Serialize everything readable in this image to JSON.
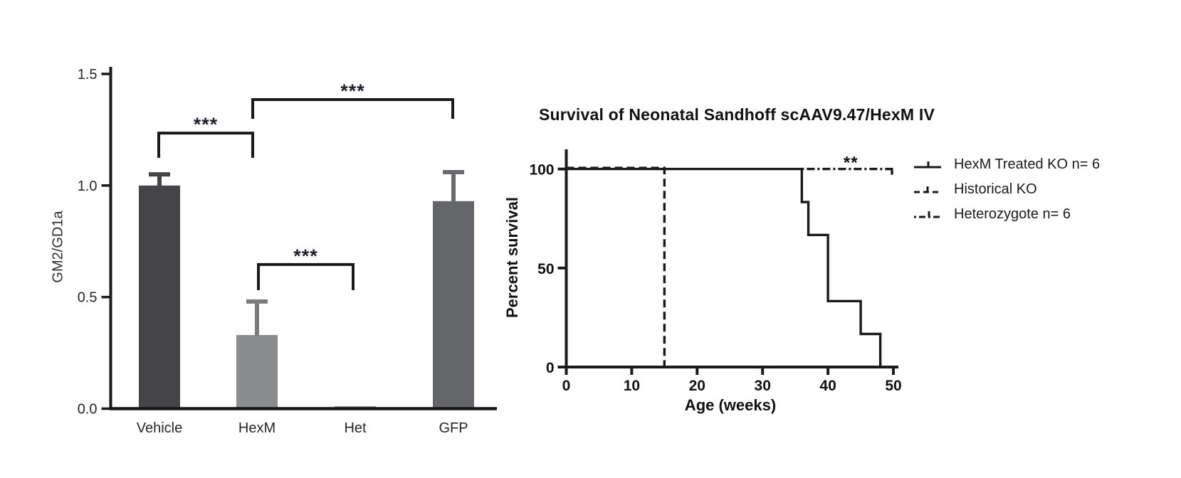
{
  "chart_data": [
    {
      "type": "bar",
      "ylabel": "GM2/GD1a",
      "categories": [
        "Vehicle",
        "HexM",
        "Het",
        "GFP"
      ],
      "values": [
        1.0,
        0.33,
        0.011,
        0.93
      ],
      "errors_up": [
        0.05,
        0.15,
        0,
        0.13
      ],
      "bar_colors": [
        "#454547",
        "#8b8c8e",
        "#96979a",
        "#656669"
      ],
      "error_colors": [
        "#454547",
        "#7a7b7e",
        "#96979a",
        "#6a6b6e"
      ],
      "y_tick_labels": [
        "0.0",
        "0.5",
        "1.0",
        "1.5"
      ],
      "y_tick_values": [
        0,
        0.5,
        1.0,
        1.5
      ],
      "ylim": [
        0,
        1.5
      ],
      "grid": false,
      "significance_brackets": [
        {
          "from": 0,
          "to": 1,
          "label": "***",
          "y": 1.235,
          "tip": 1.124
        },
        {
          "from": 1,
          "to": 3,
          "label": "***",
          "y": 1.385,
          "tip": 1.299
        },
        {
          "from": 1,
          "to": 2,
          "label": "***",
          "y": 0.646,
          "tip": 0.531
        }
      ]
    },
    {
      "type": "line",
      "title": "Survival of Neonatal Sandhoff scAAV9.47/HexM IV",
      "xlabel": "Age (weeks)",
      "ylabel": "Percent survival",
      "x_tick_labels": [
        "0",
        "10",
        "20",
        "30",
        "40",
        "50"
      ],
      "x_tick_values": [
        0,
        10,
        20,
        30,
        40,
        50
      ],
      "y_tick_labels": [
        "0",
        "50",
        "100"
      ],
      "y_tick_values": [
        0,
        50,
        100
      ],
      "xlim": [
        0,
        50
      ],
      "ylim": [
        0,
        100
      ],
      "grid": false,
      "legend_position": "right",
      "annotation": {
        "label": "**",
        "x": 43.5,
        "y": 105
      },
      "series": [
        {
          "name": "HexM Treated KO n= 6",
          "style": "solid",
          "points": [
            [
              0,
              100
            ],
            [
              36,
              100
            ],
            [
              36,
              83.3
            ],
            [
              37,
              83.3
            ],
            [
              37,
              66.7
            ],
            [
              40,
              66.7
            ],
            [
              40,
              33.3
            ],
            [
              45,
              33.3
            ],
            [
              45,
              16.7
            ],
            [
              48,
              16.7
            ],
            [
              48,
              0
            ]
          ]
        },
        {
          "name": "Historical KO",
          "style": "dashed",
          "points": [
            [
              0,
              100
            ],
            [
              15,
              100
            ],
            [
              15,
              0
            ]
          ]
        },
        {
          "name": "Heterozygote n= 6",
          "style": "dashdot",
          "points": [
            [
              36,
              100
            ],
            [
              50,
              100
            ]
          ],
          "end_tick": true
        }
      ],
      "legend": [
        {
          "label": "HexM Treated KO n= 6",
          "style": "solid"
        },
        {
          "label": "Historical KO",
          "style": "dashed"
        },
        {
          "label": "Heterozygote n= 6",
          "style": "dashdot"
        }
      ]
    }
  ],
  "colors": {
    "line": "#1a1a1a",
    "left_text": "#26262c",
    "star_text": "#1f1f2e",
    "right_text": "#111111"
  }
}
